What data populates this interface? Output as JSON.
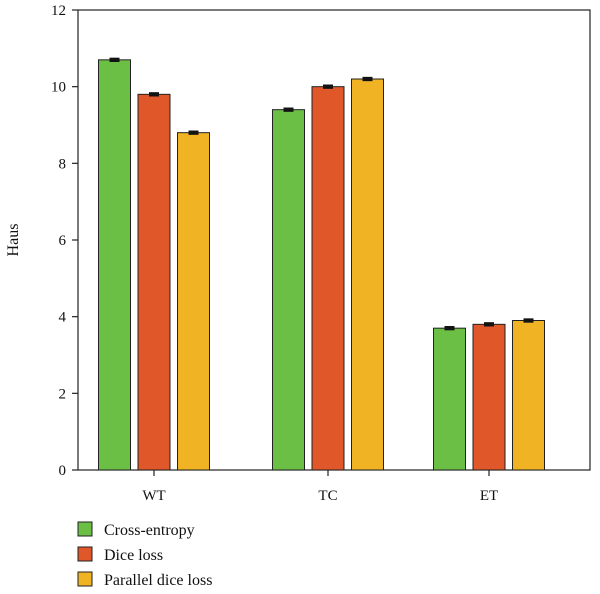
{
  "chart_data": {
    "type": "bar",
    "title": "",
    "xlabel": "",
    "ylabel": "Haus",
    "ylim": [
      0,
      12
    ],
    "yticks": [
      0,
      2,
      4,
      6,
      8,
      10,
      12
    ],
    "categories": [
      "WT",
      "TC",
      "ET"
    ],
    "series": [
      {
        "name": "Cross-entropy",
        "color": "#6BBF45",
        "values": [
          10.7,
          9.4,
          3.7
        ]
      },
      {
        "name": "Dice loss",
        "color": "#E0572A",
        "values": [
          9.8,
          10.0,
          3.8
        ]
      },
      {
        "name": "Parallel dice loss",
        "color": "#F0B323",
        "values": [
          8.8,
          10.2,
          3.9
        ]
      }
    ],
    "error": [
      0.03,
      0.03,
      0.03
    ],
    "legend_position": "bottom-left",
    "grid": false
  }
}
